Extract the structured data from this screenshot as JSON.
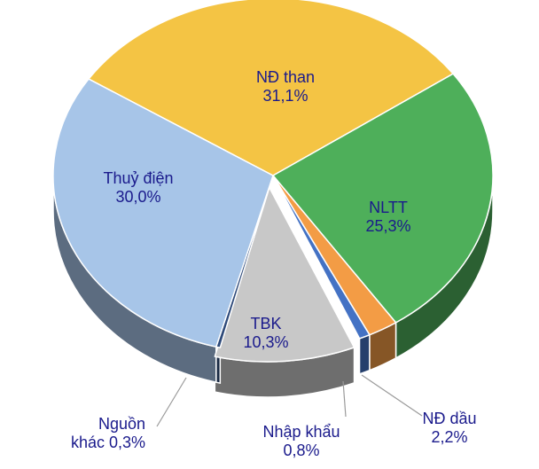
{
  "chart_data": {
    "type": "pie",
    "style": "3d",
    "slices": [
      {
        "key": "nd-than",
        "name": "NĐ than",
        "value": 31.1,
        "value_label": "31,1%",
        "color": "#F4C444",
        "label_lines": [
          "NĐ than",
          "31,1%"
        ]
      },
      {
        "key": "nltt",
        "name": "NLTT",
        "value": 25.3,
        "value_label": "25,3%",
        "color": "#4EAF5A",
        "label_lines": [
          "NLTT",
          "25,3%"
        ]
      },
      {
        "key": "nd-dau",
        "name": "NĐ dầu",
        "value": 2.2,
        "value_label": "2,2%",
        "color": "#F39C45",
        "label_lines": [
          "NĐ dầu",
          "2,2%"
        ]
      },
      {
        "key": "nhap-khau",
        "name": "Nhập khẩu",
        "value": 0.8,
        "value_label": "0,8%",
        "color": "#4472C4",
        "label_lines": [
          "Nhập khẩu",
          "0,8%"
        ]
      },
      {
        "key": "tbk",
        "name": "TBK",
        "value": 10.3,
        "value_label": "10,3%",
        "color": "#C8C8C8",
        "label_lines": [
          "TBK",
          "10,3%"
        ]
      },
      {
        "key": "nguon-khac",
        "name": "Nguồn khác",
        "value": 0.3,
        "value_label": "0,3%",
        "color": "#2E4A7A",
        "label_lines": [
          "Nguồn",
          "khác 0,3%"
        ]
      },
      {
        "key": "thuy-dien",
        "name": "Thuỷ điện",
        "value": 30.0,
        "value_label": "30,0%",
        "color": "#A7C5E8",
        "label_lines": [
          "Thuỷ điện",
          "30,0%"
        ]
      }
    ]
  }
}
